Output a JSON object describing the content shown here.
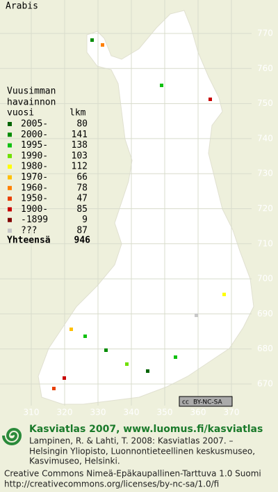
{
  "map_title": "Arabis",
  "legend": {
    "heading": [
      "Vuusimman",
      "havainnon",
      "vuosi"
    ],
    "count_heading": "lkm",
    "rows": [
      {
        "label": "2005-",
        "count": 80,
        "color": "#006400"
      },
      {
        "label": "2000-",
        "count": 141,
        "color": "#008c00"
      },
      {
        "label": "1995-",
        "count": 138,
        "color": "#10c010"
      },
      {
        "label": "1990-",
        "count": 103,
        "color": "#70e000"
      },
      {
        "label": "1980-",
        "count": 112,
        "color": "#ffff00"
      },
      {
        "label": "1970-",
        "count": 66,
        "color": "#ffc000"
      },
      {
        "label": "1960-",
        "count": 78,
        "color": "#ff8000"
      },
      {
        "label": "1950-",
        "count": 47,
        "color": "#e84000"
      },
      {
        "label": "1900-",
        "count": 85,
        "color": "#c80000"
      },
      {
        "label": "-1899",
        "count": 9,
        "color": "#800000"
      },
      {
        "label": "???",
        "count": 87,
        "color": "#c8c8c8"
      }
    ],
    "total_label": "Yhteensä",
    "total": 946
  },
  "northing_labels": [
    770,
    760,
    750,
    740,
    730,
    720,
    710,
    700,
    690,
    680,
    670
  ],
  "easting_labels": [
    310,
    320,
    330,
    340,
    350,
    360,
    370
  ],
  "badge": "BY-NC-SA",
  "footer": {
    "title": "Kasviatlas 2007, www.luomus.fi/kasviatlas",
    "citation": [
      "Lampinen, R. & Lahti, T. 2008: Kasviatlas 2007. –",
      "Helsingin Yliopisto, Luonnontieteellinen keskusmuseo,",
      "Kasvimuseo, Helsinki."
    ],
    "license": [
      "Creative Commons Nimeä-Epäkaupallinen-Tarttuva 1.0 Suomi",
      "http://creativecommons.org/licenses/by-nc-sa/1.0/fi"
    ]
  }
}
